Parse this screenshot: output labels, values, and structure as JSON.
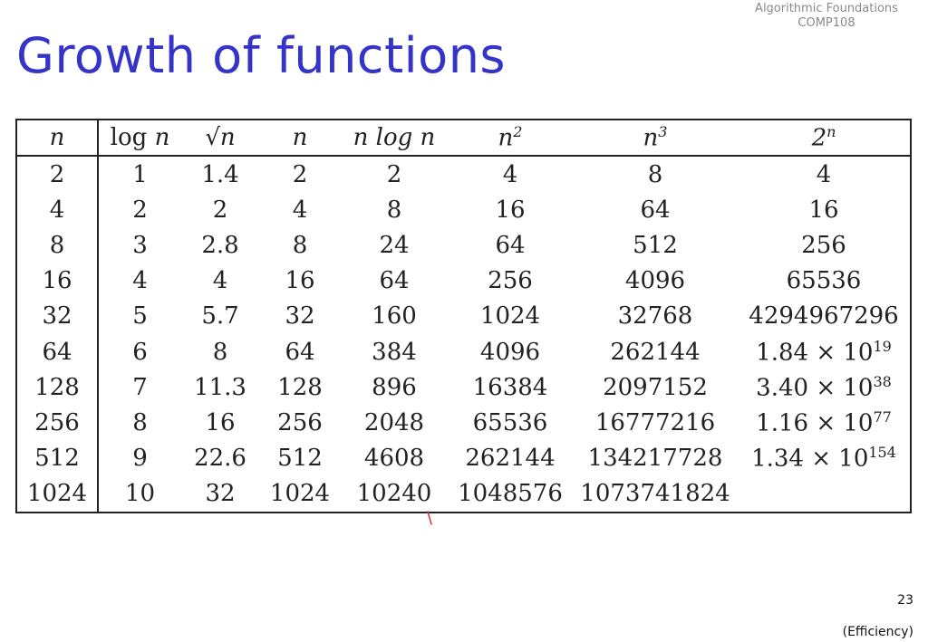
{
  "header": {
    "course_line1": "Algorithmic Foundations",
    "course_line2": "COMP108"
  },
  "slide": {
    "title": "Growth of functions",
    "page_number": "23",
    "section": "(Efficiency)"
  },
  "table": {
    "columns": [
      {
        "base": "n",
        "prefix": "",
        "sup": ""
      },
      {
        "base": "n",
        "prefix": "log ",
        "sup": ""
      },
      {
        "base": "√n",
        "prefix": "",
        "sup": ""
      },
      {
        "base": "n",
        "prefix": "",
        "sup": ""
      },
      {
        "base": "n log n",
        "prefix": "",
        "sup": ""
      },
      {
        "base": "n",
        "prefix": "",
        "sup": "2"
      },
      {
        "base": "n",
        "prefix": "",
        "sup": "3"
      },
      {
        "base": "2",
        "prefix": "",
        "sup": "n"
      }
    ],
    "rows": [
      [
        {
          "t": "2"
        },
        {
          "t": "1"
        },
        {
          "t": "1.4"
        },
        {
          "t": "2"
        },
        {
          "t": "2"
        },
        {
          "t": "4"
        },
        {
          "t": "8"
        },
        {
          "t": "4"
        }
      ],
      [
        {
          "t": "4"
        },
        {
          "t": "2"
        },
        {
          "t": "2"
        },
        {
          "t": "4"
        },
        {
          "t": "8"
        },
        {
          "t": "16"
        },
        {
          "t": "64"
        },
        {
          "t": "16"
        }
      ],
      [
        {
          "t": "8"
        },
        {
          "t": "3"
        },
        {
          "t": "2.8"
        },
        {
          "t": "8"
        },
        {
          "t": "24"
        },
        {
          "t": "64"
        },
        {
          "t": "512"
        },
        {
          "t": "256"
        }
      ],
      [
        {
          "t": "16"
        },
        {
          "t": "4"
        },
        {
          "t": "4"
        },
        {
          "t": "16"
        },
        {
          "t": "64"
        },
        {
          "t": "256"
        },
        {
          "t": "4096"
        },
        {
          "t": "65536"
        }
      ],
      [
        {
          "t": "32"
        },
        {
          "t": "5"
        },
        {
          "t": "5.7"
        },
        {
          "t": "32"
        },
        {
          "t": "160"
        },
        {
          "t": "1024"
        },
        {
          "t": "32768"
        },
        {
          "t": "4294967296"
        }
      ],
      [
        {
          "t": "64"
        },
        {
          "t": "6"
        },
        {
          "t": "8"
        },
        {
          "t": "64"
        },
        {
          "t": "384"
        },
        {
          "t": "4096"
        },
        {
          "t": "262144"
        },
        {
          "t": "1.84 × 10",
          "sup": "19"
        }
      ],
      [
        {
          "t": "128"
        },
        {
          "t": "7"
        },
        {
          "t": "11.3"
        },
        {
          "t": "128"
        },
        {
          "t": "896"
        },
        {
          "t": "16384"
        },
        {
          "t": "2097152"
        },
        {
          "t": "3.40 × 10",
          "sup": "38"
        }
      ],
      [
        {
          "t": "256"
        },
        {
          "t": "8"
        },
        {
          "t": "16"
        },
        {
          "t": "256"
        },
        {
          "t": "2048"
        },
        {
          "t": "65536"
        },
        {
          "t": "16777216"
        },
        {
          "t": "1.16 × 10",
          "sup": "77"
        }
      ],
      [
        {
          "t": "512"
        },
        {
          "t": "9"
        },
        {
          "t": "22.6"
        },
        {
          "t": "512"
        },
        {
          "t": "4608"
        },
        {
          "t": "262144"
        },
        {
          "t": "134217728"
        },
        {
          "t": "1.34 × 10",
          "sup": "154"
        }
      ],
      [
        {
          "t": "1024"
        },
        {
          "t": "10"
        },
        {
          "t": "32"
        },
        {
          "t": "1024"
        },
        {
          "t": "10240"
        },
        {
          "t": "1048576"
        },
        {
          "t": "1073741824"
        },
        {
          "t": ""
        }
      ]
    ]
  },
  "annotation_color": "#e03030"
}
